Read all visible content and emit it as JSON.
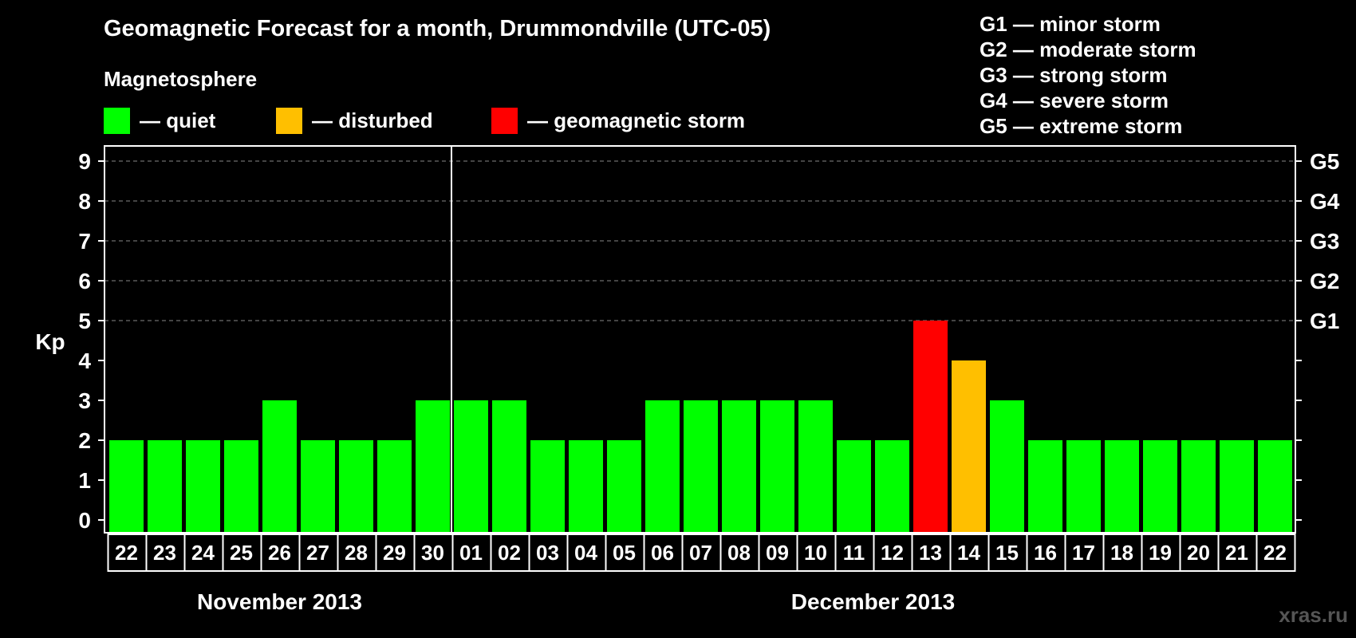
{
  "header": {
    "title": "Geomagnetic Forecast for a month, Drummondville (UTC-05)",
    "magnetosphere_label": "Magnetosphere"
  },
  "legend": [
    {
      "color": "#00ff00",
      "label": "— quiet"
    },
    {
      "color": "#ffbf00",
      "label": "— disturbed"
    },
    {
      "color": "#ff0000",
      "label": "— geomagnetic storm"
    }
  ],
  "g_levels": [
    "G1 — minor storm",
    "G2 — moderate storm",
    "G3 — strong storm",
    "G4 — severe storm",
    "G5 — extreme storm"
  ],
  "watermark": "xras.ru",
  "chart_data": {
    "type": "bar",
    "title": "Geomagnetic Forecast for a month, Drummondville (UTC-05)",
    "ylabel": "Kp",
    "ylim": [
      0,
      9
    ],
    "y_ticks": [
      "0",
      "1",
      "2",
      "3",
      "4",
      "5",
      "6",
      "7",
      "8",
      "9"
    ],
    "right_ticks": [
      {
        "kp": 5,
        "label": "G1"
      },
      {
        "kp": 6,
        "label": "G2"
      },
      {
        "kp": 7,
        "label": "G3"
      },
      {
        "kp": 8,
        "label": "G4"
      },
      {
        "kp": 9,
        "label": "G5"
      }
    ],
    "grid": "dashed horizontal at Kp 5-9",
    "categories": [
      "22",
      "23",
      "24",
      "25",
      "26",
      "27",
      "28",
      "29",
      "30",
      "01",
      "02",
      "03",
      "04",
      "05",
      "06",
      "07",
      "08",
      "09",
      "10",
      "11",
      "12",
      "13",
      "14",
      "15",
      "16",
      "17",
      "18",
      "19",
      "20",
      "21",
      "22"
    ],
    "values": [
      2,
      2,
      2,
      2,
      3,
      2,
      2,
      2,
      3,
      3,
      3,
      2,
      2,
      2,
      3,
      3,
      3,
      3,
      3,
      2,
      2,
      5,
      4,
      3,
      2,
      2,
      2,
      2,
      2,
      2,
      2
    ],
    "bar_colors": [
      "#00ff00",
      "#00ff00",
      "#00ff00",
      "#00ff00",
      "#00ff00",
      "#00ff00",
      "#00ff00",
      "#00ff00",
      "#00ff00",
      "#00ff00",
      "#00ff00",
      "#00ff00",
      "#00ff00",
      "#00ff00",
      "#00ff00",
      "#00ff00",
      "#00ff00",
      "#00ff00",
      "#00ff00",
      "#00ff00",
      "#00ff00",
      "#ff0000",
      "#ffbf00",
      "#00ff00",
      "#00ff00",
      "#00ff00",
      "#00ff00",
      "#00ff00",
      "#00ff00",
      "#00ff00",
      "#00ff00"
    ],
    "months": [
      {
        "label": "November 2013",
        "first_index": 0,
        "last_index": 8
      },
      {
        "label": "December 2013",
        "first_index": 9,
        "last_index": 30
      }
    ]
  }
}
